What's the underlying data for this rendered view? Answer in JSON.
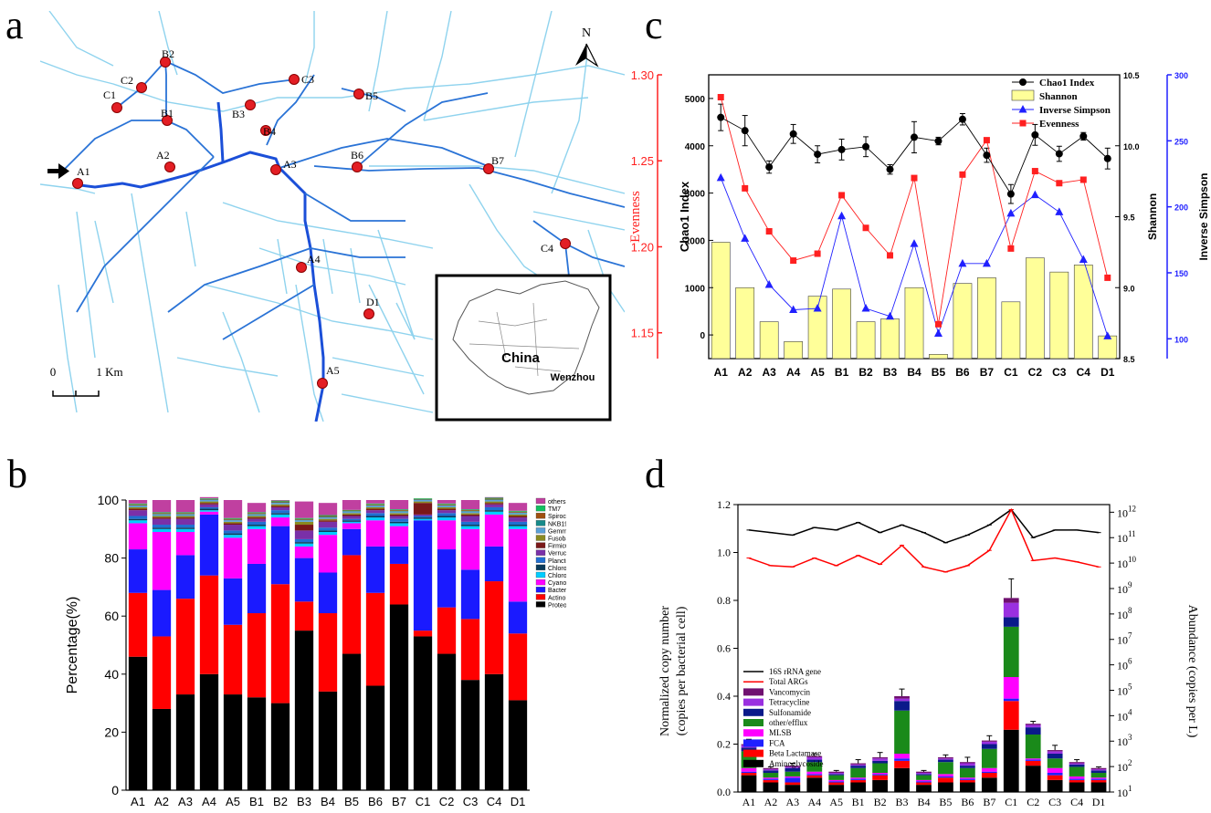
{
  "letters": {
    "a": "a",
    "b": "b",
    "c": "c",
    "d": "d"
  },
  "map": {
    "north": "N",
    "scale_labels": [
      "0",
      "1 Km"
    ],
    "inset_country": "China",
    "inset_city": "Wenzhou",
    "sites": [
      {
        "id": "A1",
        "label": "A1"
      },
      {
        "id": "A2",
        "label": "A2"
      },
      {
        "id": "A3",
        "label": "A3"
      },
      {
        "id": "A4",
        "label": "A4"
      },
      {
        "id": "A5",
        "label": "A5"
      },
      {
        "id": "B1",
        "label": "B1"
      },
      {
        "id": "B2",
        "label": "B2"
      },
      {
        "id": "B3",
        "label": "B3"
      },
      {
        "id": "B4",
        "label": "B4"
      },
      {
        "id": "B5",
        "label": "B5"
      },
      {
        "id": "B6",
        "label": "B6"
      },
      {
        "id": "B7",
        "label": "B7"
      },
      {
        "id": "C1",
        "label": "C1"
      },
      {
        "id": "C2",
        "label": "C2"
      },
      {
        "id": "C3",
        "label": "C3"
      },
      {
        "id": "C4",
        "label": "C4"
      },
      {
        "id": "D1",
        "label": "D1"
      }
    ],
    "colors": {
      "river": "#8fd3ee",
      "main": "#1b4fd8",
      "site": "#e31e24"
    }
  },
  "chart_data": [
    {
      "panel": "b",
      "type": "bar",
      "stacked": true,
      "ylabel": "Percentage(%)",
      "ylim": [
        0,
        100
      ],
      "yticks": [
        0,
        20,
        40,
        60,
        80,
        100
      ],
      "categories": [
        "A1",
        "A2",
        "A3",
        "A4",
        "A5",
        "B1",
        "B2",
        "B3",
        "B4",
        "B5",
        "B6",
        "B7",
        "C1",
        "C2",
        "C3",
        "C4",
        "D1"
      ],
      "series": [
        {
          "name": "Proteobacteria",
          "color": "#000000",
          "values": [
            46,
            28,
            33,
            40,
            33,
            32,
            30,
            55,
            34,
            47,
            36,
            64,
            53,
            47,
            38,
            40,
            31
          ]
        },
        {
          "name": "Actinobacteria",
          "color": "#ff0000",
          "values": [
            22,
            25,
            33,
            34,
            24,
            29,
            41,
            10,
            27,
            34,
            32,
            14,
            2,
            16,
            21,
            32,
            23
          ]
        },
        {
          "name": "Bacteroidetes",
          "color": "#1a1aff",
          "values": [
            15,
            16,
            15,
            21,
            16,
            17,
            20,
            15,
            14,
            9,
            16,
            6,
            38,
            20,
            17,
            12,
            11
          ]
        },
        {
          "name": "Cyanobacteria",
          "color": "#ff00ff",
          "values": [
            9,
            20,
            8,
            1,
            14,
            12,
            3,
            4,
            13,
            2,
            9,
            7,
            0,
            10,
            14,
            11,
            25
          ]
        },
        {
          "name": "Chloroflexi",
          "color": "#00ccff",
          "values": [
            1,
            1,
            1,
            0.5,
            1,
            1,
            1,
            1,
            1,
            0.5,
            1,
            1,
            0.5,
            1,
            1,
            1,
            1
          ]
        },
        {
          "name": "Chlorobi",
          "color": "#0a3a5a",
          "values": [
            0.5,
            0.5,
            0.5,
            0.5,
            0.5,
            0.5,
            0.5,
            0.5,
            0.5,
            0.5,
            0.5,
            0.5,
            0.5,
            0.5,
            0.5,
            0.5,
            0.5
          ]
        },
        {
          "name": "Planctomycetes",
          "color": "#1f6fd1",
          "values": [
            1,
            1,
            1,
            0.5,
            1,
            1,
            1,
            1,
            1,
            0.5,
            1,
            1,
            0.5,
            1,
            1,
            1,
            1
          ]
        },
        {
          "name": "Verrucomicrobia",
          "color": "#7a30a8",
          "values": [
            2,
            2,
            2,
            1,
            2,
            1,
            1,
            3,
            2,
            1,
            1,
            1,
            0.5,
            1,
            2,
            1,
            1.5
          ]
        },
        {
          "name": "Firmicutes",
          "color": "#7a1818",
          "values": [
            0.5,
            0.5,
            0.5,
            0.5,
            0.5,
            0.5,
            0.5,
            2,
            0.5,
            0.5,
            0.5,
            0.5,
            4,
            0.5,
            0.5,
            0.5,
            0.5
          ]
        },
        {
          "name": "Fusobacteria",
          "color": "#8a8a20",
          "values": [
            0.5,
            0.5,
            0.5,
            0.5,
            0.5,
            0.5,
            0.5,
            1,
            0.5,
            0.5,
            0.5,
            0.5,
            0.5,
            0.5,
            0.5,
            0.5,
            0.5
          ]
        },
        {
          "name": "Gemmatimonadetes",
          "color": "#5aa0d8",
          "values": [
            0.5,
            0.5,
            0.5,
            0.5,
            0.5,
            0.5,
            0.5,
            0.5,
            0.5,
            0.5,
            0.5,
            0.5,
            0.5,
            0.5,
            0.5,
            0.5,
            0.5
          ]
        },
        {
          "name": "NKB19",
          "color": "#178a8a",
          "values": [
            0.2,
            0.2,
            0.2,
            0.2,
            0.2,
            0.2,
            0.2,
            0.2,
            0.2,
            0.2,
            0.2,
            0.2,
            0.2,
            0.2,
            0.2,
            0.2,
            0.2
          ]
        },
        {
          "name": "Spirochaetes",
          "color": "#a05010",
          "values": [
            0.3,
            0.3,
            0.3,
            0.2,
            0.3,
            0.3,
            0.3,
            0.3,
            0.3,
            0.2,
            0.3,
            0.3,
            0.2,
            0.3,
            0.3,
            0.3,
            0.3
          ]
        },
        {
          "name": "TM7",
          "color": "#12c060",
          "values": [
            0.3,
            0.3,
            0.3,
            0.2,
            0.3,
            0.3,
            0.3,
            0.3,
            0.3,
            0.2,
            0.3,
            0.3,
            0.2,
            0.3,
            0.3,
            0.3,
            0.3
          ]
        },
        {
          "name": "others",
          "color": "#c040a0",
          "values": [
            1.2,
            4.2,
            4.2,
            0.4,
            6.2,
            3.2,
            0.2,
            5.7,
            4.2,
            3.4,
            1.2,
            3.2,
            -1.1,
            1.2,
            3.2,
            0.2,
            2.7
          ]
        }
      ],
      "legend_order": [
        "others",
        "TM7",
        "Spirochaetes",
        "NKB19",
        "Gemmatimonadetes",
        "Fusobacteria",
        "Firmicutes",
        "Verrucomicrobia",
        "Planctomycetes",
        "Chlorobi",
        "Chloroflexi",
        "Cyanobacteria",
        "Bacteroidetes",
        "Actinobacteria",
        "Proteobacteria"
      ]
    },
    {
      "panel": "c",
      "type": "line",
      "categories": [
        "A1",
        "A2",
        "A3",
        "A4",
        "A5",
        "B1",
        "B2",
        "B3",
        "B4",
        "B5",
        "B6",
        "B7",
        "C1",
        "C2",
        "C3",
        "C4",
        "D1"
      ],
      "axes": {
        "chao1": {
          "label": "Chao1 Index",
          "ylim": [
            -500,
            5500
          ],
          "ticks": [
            0,
            1000,
            2000,
            3000,
            4000,
            5000
          ]
        },
        "shannon": {
          "label": "Shannon",
          "ylim": [
            8.5,
            10.5
          ],
          "ticks": [
            8.5,
            9.0,
            9.5,
            10.0,
            10.5
          ],
          "tick_labels": [
            "8.5",
            "9.0",
            "9.5",
            "10.0",
            "10.5"
          ]
        },
        "invsimpson": {
          "label": "Inverse Simpson",
          "ylim": [
            85,
            300
          ],
          "ticks": [
            100,
            150,
            200,
            250,
            300
          ],
          "color": "#2020ff"
        },
        "evenness": {
          "label": "Evenness",
          "ylim": [
            1.135,
            1.3
          ],
          "ticks": [
            1.15,
            1.2,
            1.25,
            1.3
          ],
          "tick_labels": [
            "1.15",
            "1.20",
            "1.25",
            "1.30"
          ],
          "color": "#ff2020"
        }
      },
      "series": [
        {
          "name": "Chao1 Index",
          "axis": "chao1",
          "color": "#000000",
          "marker": "circle",
          "values": [
            4600,
            4320,
            3550,
            4250,
            3820,
            3920,
            3980,
            3500,
            4180,
            4100,
            4560,
            3800,
            2980,
            4230,
            3830,
            4200,
            3730
          ],
          "errors": [
            280,
            320,
            130,
            200,
            180,
            220,
            210,
            100,
            330,
            80,
            120,
            150,
            200,
            220,
            160,
            80,
            220
          ]
        },
        {
          "name": "Shannon",
          "axis": "shannon",
          "color": "#ffff99",
          "marker": "bar",
          "values": [
            9.32,
            9.0,
            8.76,
            8.62,
            8.94,
            8.99,
            8.76,
            8.78,
            9.0,
            8.53,
            9.03,
            9.07,
            8.9,
            9.21,
            9.11,
            9.16,
            8.66
          ]
        },
        {
          "name": "Inverse Simpson",
          "axis": "invsimpson",
          "color": "#2020ff",
          "marker": "triangle",
          "values": [
            222,
            176,
            141,
            122,
            123,
            193,
            123,
            117,
            172,
            104,
            157,
            157,
            195,
            209,
            196,
            160,
            102
          ]
        },
        {
          "name": "Evenness",
          "axis": "evenness",
          "color": "#ff2020",
          "marker": "square",
          "values": [
            1.287,
            1.234,
            1.209,
            1.192,
            1.196,
            1.23,
            1.211,
            1.195,
            1.24,
            1.155,
            1.242,
            1.262,
            1.199,
            1.244,
            1.237,
            1.239,
            1.182
          ]
        }
      ]
    },
    {
      "panel": "d",
      "type": "bar",
      "stacked": true,
      "ylabel_left": [
        "Normalized copy number",
        "(copies per bacterial cell)"
      ],
      "ylabel_right": "Abundance (copies per L)",
      "ylim": [
        0,
        1.2
      ],
      "yticks": [
        0.0,
        0.2,
        0.4,
        0.6,
        0.8,
        1.0,
        1.2
      ],
      "ytick_labels": [
        "0.0",
        "0.2",
        "0.4",
        "0.6",
        "0.8",
        "1.0",
        "1.2"
      ],
      "right_ylim_log10": [
        1,
        12.3
      ],
      "right_ticks_exp": [
        1,
        2,
        3,
        4,
        5,
        6,
        7,
        8,
        9,
        10,
        11,
        12
      ],
      "categories": [
        "A1",
        "A2",
        "A3",
        "A4",
        "A5",
        "B1",
        "B2",
        "B3",
        "B4",
        "B5",
        "B6",
        "B7",
        "C1",
        "C2",
        "C3",
        "C4",
        "D1"
      ],
      "series": [
        {
          "name": "Aminoglycoside",
          "color": "#000000",
          "values": [
            0.07,
            0.04,
            0.03,
            0.06,
            0.03,
            0.04,
            0.05,
            0.1,
            0.03,
            0.04,
            0.04,
            0.06,
            0.26,
            0.11,
            0.05,
            0.04,
            0.04
          ]
        },
        {
          "name": "Beta Lactamase",
          "color": "#ff0000",
          "values": [
            0.01,
            0.01,
            0.01,
            0.01,
            0.01,
            0.01,
            0.02,
            0.03,
            0.01,
            0.02,
            0.01,
            0.02,
            0.12,
            0.02,
            0.02,
            0.01,
            0.01
          ]
        },
        {
          "name": "FCA",
          "color": "#2020ff",
          "values": [
            0.005,
            0.005,
            0.02,
            0.005,
            0.005,
            0.005,
            0.005,
            0.01,
            0.005,
            0.005,
            0.005,
            0.005,
            0.01,
            0.005,
            0.01,
            0.005,
            0.005
          ]
        },
        {
          "name": "MLSB",
          "color": "#ff00ff",
          "values": [
            0.015,
            0.005,
            0.005,
            0.01,
            0.005,
            0.005,
            0.005,
            0.02,
            0.005,
            0.01,
            0.005,
            0.015,
            0.09,
            0.005,
            0.02,
            0.01,
            0.005
          ]
        },
        {
          "name": "other/efflux",
          "color": "#1a8a1a",
          "values": [
            0.07,
            0.02,
            0.02,
            0.04,
            0.02,
            0.04,
            0.04,
            0.18,
            0.02,
            0.05,
            0.04,
            0.08,
            0.21,
            0.1,
            0.04,
            0.04,
            0.02
          ]
        },
        {
          "name": "Sulfonamide",
          "color": "#0a1a8a",
          "values": [
            0.015,
            0.01,
            0.015,
            0.01,
            0.005,
            0.01,
            0.01,
            0.04,
            0.005,
            0.01,
            0.01,
            0.02,
            0.04,
            0.03,
            0.02,
            0.01,
            0.01
          ]
        },
        {
          "name": "Tetracycline",
          "color": "#9a30e0",
          "values": [
            0.01,
            0.005,
            0.005,
            0.01,
            0.005,
            0.005,
            0.01,
            0.01,
            0.005,
            0.005,
            0.01,
            0.01,
            0.06,
            0.01,
            0.01,
            0.005,
            0.005
          ]
        },
        {
          "name": "Vancomycin",
          "color": "#701070",
          "values": [
            0.005,
            0.005,
            0.005,
            0.005,
            0.005,
            0.005,
            0.005,
            0.01,
            0.005,
            0.005,
            0.005,
            0.005,
            0.02,
            0.005,
            0.005,
            0.005,
            0.005
          ]
        }
      ],
      "error_tops": [
        0.02,
        0.005,
        0.01,
        0.01,
        0.005,
        0.015,
        0.02,
        0.03,
        0.005,
        0.01,
        0.02,
        0.02,
        0.08,
        0.01,
        0.02,
        0.01,
        0.005
      ],
      "lines": [
        {
          "name": "16S rRNA gene",
          "color": "#000000",
          "log10_values": [
            11.3,
            11.2,
            11.1,
            11.4,
            11.3,
            11.6,
            11.2,
            11.5,
            11.2,
            10.8,
            11.1,
            11.5,
            12.1,
            11.0,
            11.3,
            11.3,
            11.2
          ]
        },
        {
          "name": "Total ARGs",
          "color": "#ff0000",
          "log10_values": [
            10.2,
            9.9,
            9.85,
            10.2,
            9.9,
            10.3,
            9.95,
            10.7,
            9.85,
            9.65,
            9.9,
            10.5,
            12.1,
            10.1,
            10.2,
            10.05,
            9.85
          ]
        }
      ],
      "legend_order": [
        "16S rRNA gene",
        "Total ARGs",
        "Vancomycin",
        "Tetracycline",
        "Sulfonamide",
        "other/efflux",
        "MLSB",
        "FCA",
        "Beta Lactamase",
        "Aminoglycoside"
      ]
    }
  ]
}
